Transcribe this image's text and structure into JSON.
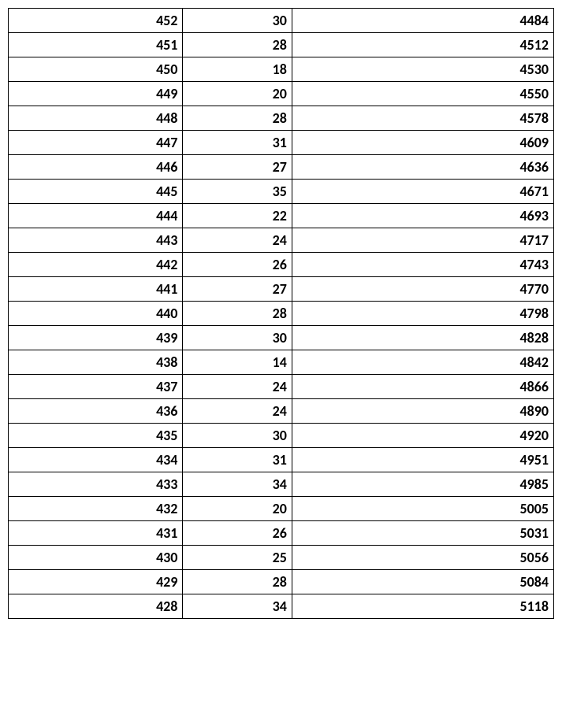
{
  "table": {
    "type": "table",
    "background_color": "#ffffff",
    "border_color": "#000000",
    "text_color": "#000000",
    "font_family": "Calibri",
    "font_size": 18,
    "font_weight": "bold",
    "text_align": "right",
    "cell_padding": "4px 6px",
    "column_widths_percent": [
      32,
      20,
      48
    ],
    "rows": [
      [
        "452",
        "30",
        "4484"
      ],
      [
        "451",
        "28",
        "4512"
      ],
      [
        "450",
        "18",
        "4530"
      ],
      [
        "449",
        "20",
        "4550"
      ],
      [
        "448",
        "28",
        "4578"
      ],
      [
        "447",
        "31",
        "4609"
      ],
      [
        "446",
        "27",
        "4636"
      ],
      [
        "445",
        "35",
        "4671"
      ],
      [
        "444",
        "22",
        "4693"
      ],
      [
        "443",
        "24",
        "4717"
      ],
      [
        "442",
        "26",
        "4743"
      ],
      [
        "441",
        "27",
        "4770"
      ],
      [
        "440",
        "28",
        "4798"
      ],
      [
        "439",
        "30",
        "4828"
      ],
      [
        "438",
        "14",
        "4842"
      ],
      [
        "437",
        "24",
        "4866"
      ],
      [
        "436",
        "24",
        "4890"
      ],
      [
        "435",
        "30",
        "4920"
      ],
      [
        "434",
        "31",
        "4951"
      ],
      [
        "433",
        "34",
        "4985"
      ],
      [
        "432",
        "20",
        "5005"
      ],
      [
        "431",
        "26",
        "5031"
      ],
      [
        "430",
        "25",
        "5056"
      ],
      [
        "429",
        "28",
        "5084"
      ],
      [
        "428",
        "34",
        "5118"
      ]
    ]
  }
}
